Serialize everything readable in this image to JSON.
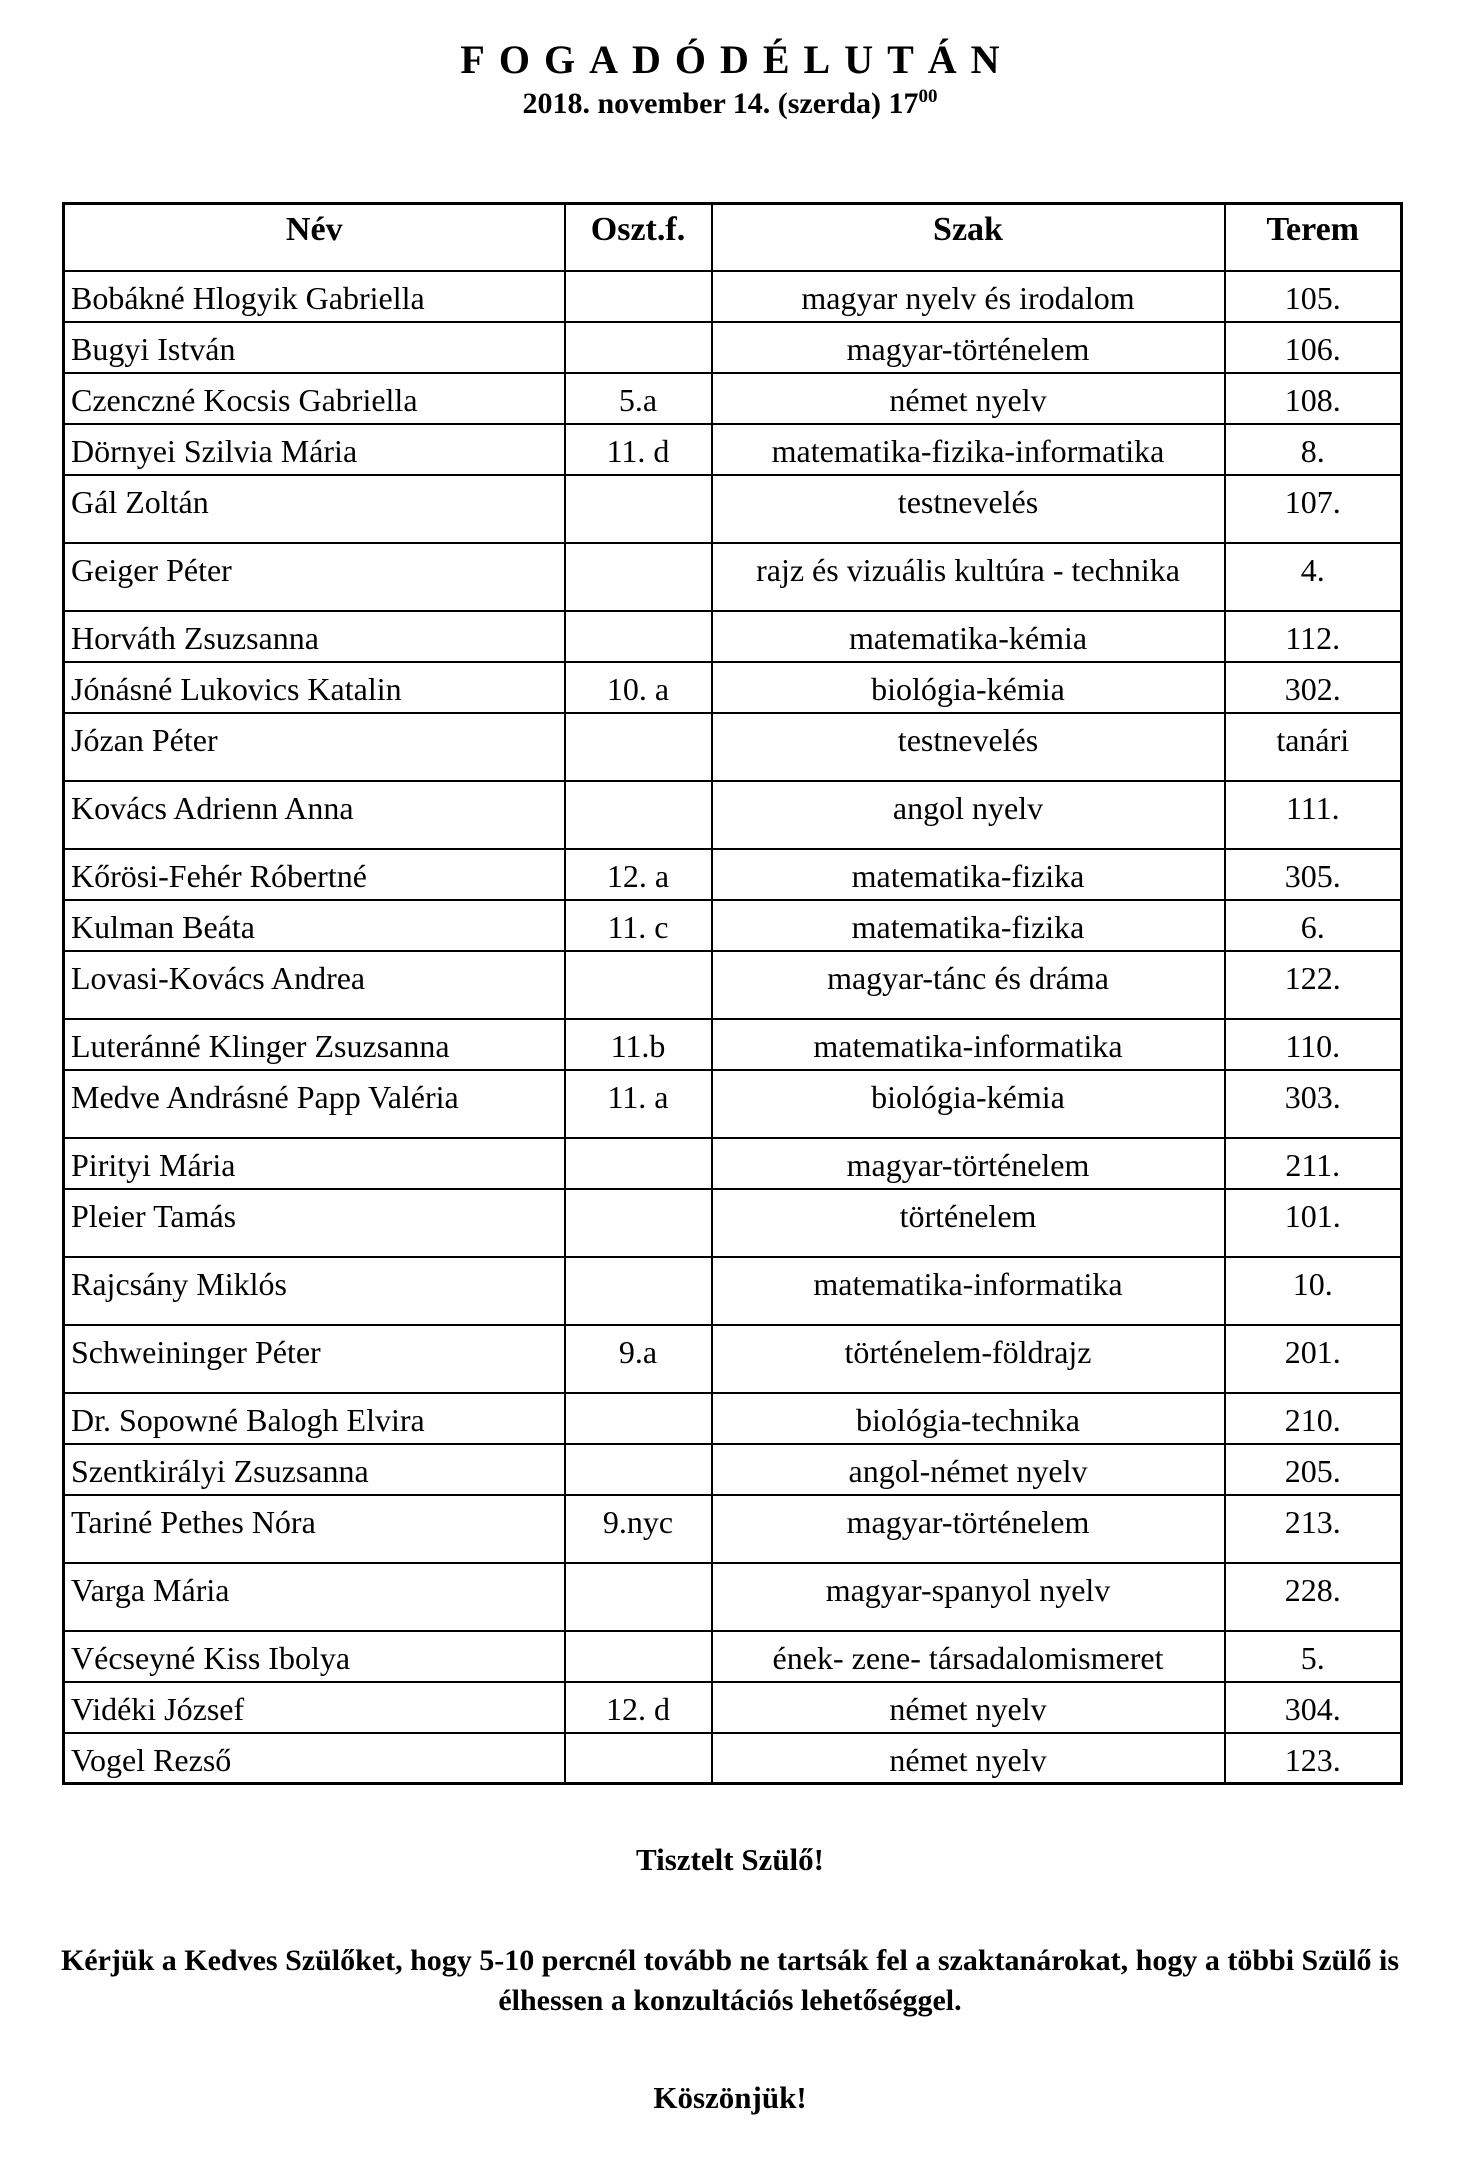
{
  "title": "FOGADÓDÉLUTÁN",
  "subtitle": {
    "text": "2018. november 14. (szerda) 17",
    "sup": "00"
  },
  "table": {
    "headers": {
      "name": "Név",
      "class": "Oszt.f.",
      "subject": "Szak",
      "room": "Terem"
    },
    "rows": [
      {
        "name": "Bobákné Hlogyik Gabriella",
        "class": "",
        "subject": "magyar nyelv és irodalom",
        "room": "105."
      },
      {
        "name": "Bugyi István",
        "class": "",
        "subject": "magyar-történelem",
        "room": "106."
      },
      {
        "name": "Czenczné Kocsis Gabriella",
        "class": "5.a",
        "subject": "német nyelv",
        "room": "108."
      },
      {
        "name": "Dörnyei Szilvia Mária",
        "class": "11. d",
        "subject": "matematika-fizika-informatika",
        "room": "8."
      },
      {
        "name": "Gál Zoltán",
        "class": "",
        "subject": "testnevelés",
        "room": "107."
      },
      {
        "name": "Geiger Péter",
        "class": "",
        "subject": "rajz és vizuális kultúra - technika",
        "room": "4."
      },
      {
        "name": "Horváth Zsuzsanna",
        "class": "",
        "subject": "matematika-kémia",
        "room": "112."
      },
      {
        "name": "Jónásné Lukovics Katalin",
        "class": "10. a",
        "subject": "biológia-kémia",
        "room": "302."
      },
      {
        "name": "Józan Péter",
        "class": "",
        "subject": "testnevelés",
        "room": "tanári"
      },
      {
        "name": "Kovács Adrienn Anna",
        "class": "",
        "subject": "angol nyelv",
        "room": "111."
      },
      {
        "name": "Kőrösi-Fehér Róbertné",
        "class": "12. a",
        "subject": "matematika-fizika",
        "room": "305."
      },
      {
        "name": "Kulman Beáta",
        "class": "11. c",
        "subject": "matematika-fizika",
        "room": "6."
      },
      {
        "name": "Lovasi-Kovács Andrea",
        "class": "",
        "subject": "magyar-tánc és dráma",
        "room": "122."
      },
      {
        "name": "Luteránné Klinger Zsuzsanna",
        "class": "11.b",
        "subject": "matematika-informatika",
        "room": "110."
      },
      {
        "name": "Medve Andrásné Papp Valéria",
        "class": "11. a",
        "subject": "biológia-kémia",
        "room": "303."
      },
      {
        "name": "Pirityi Mária",
        "class": "",
        "subject": "magyar-történelem",
        "room": "211."
      },
      {
        "name": "Pleier Tamás",
        "class": "",
        "subject": "történelem",
        "room": "101."
      },
      {
        "name": "Rajcsány Miklós",
        "class": "",
        "subject": "matematika-informatika",
        "room": "10."
      },
      {
        "name": "Schweininger Péter",
        "class": "9.a",
        "subject": "történelem-földrajz",
        "room": "201."
      },
      {
        "name": "Dr. Sopowné Balogh Elvira",
        "class": "",
        "subject": "biológia-technika",
        "room": "210."
      },
      {
        "name": "Szentkirályi Zsuzsanna",
        "class": "",
        "subject": "angol-német nyelv",
        "room": "205."
      },
      {
        "name": "Tariné Pethes Nóra",
        "class": "9.nyc",
        "subject": "magyar-történelem",
        "room": "213."
      },
      {
        "name": "Varga Mária",
        "class": "",
        "subject": "magyar-spanyol nyelv",
        "room": "228."
      },
      {
        "name": "Vécseyné Kiss Ibolya",
        "class": "",
        "subject": "ének- zene- társadalomismeret",
        "room": "5."
      },
      {
        "name": "Vidéki József",
        "class": "12. d",
        "subject": "német nyelv",
        "room": "304."
      },
      {
        "name": "Vogel Rezső",
        "class": "",
        "subject": "német nyelv",
        "room": "123."
      }
    ]
  },
  "footer": {
    "salutation": "Tisztelt Szülő!",
    "request": "Kérjük a Kedves Szülőket, hogy 5-10 percnél tovább ne tartsák fel a szaktanárokat, hogy a többi Szülő is élhessen a konzultációs lehetőséggel.",
    "thanks": "Köszönjük!"
  },
  "colors": {
    "text": "#000000",
    "border": "#000000",
    "background": "#ffffff"
  }
}
